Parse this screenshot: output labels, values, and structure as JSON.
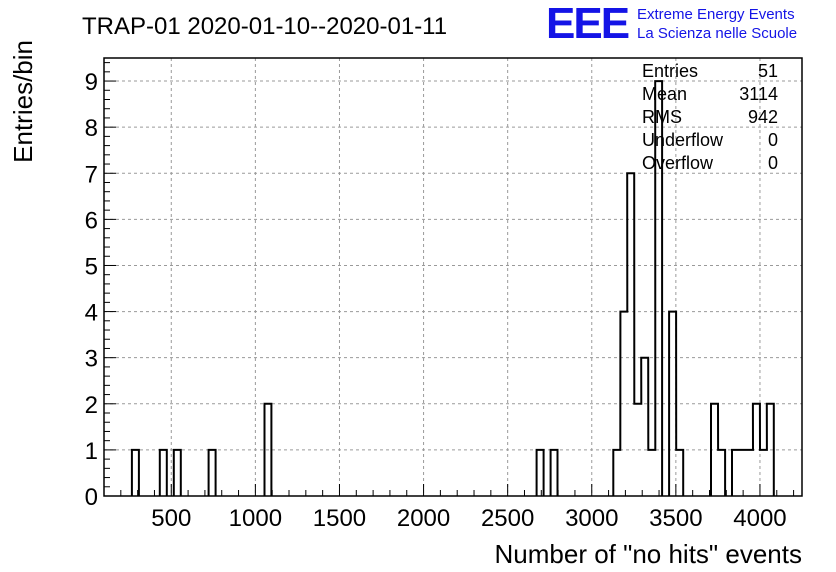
{
  "title": "TRAP-01 2020-01-10--2020-01-11",
  "logo": {
    "mark": "EEE",
    "line1": "Extreme Energy Events",
    "line2": "La Scienza nelle Scuole",
    "color": "#1414e6"
  },
  "stats": [
    {
      "label": "Entries",
      "value": "51"
    },
    {
      "label": "Mean",
      "value": "3114"
    },
    {
      "label": "RMS",
      "value": "942"
    },
    {
      "label": "Underflow",
      "value": "0"
    },
    {
      "label": "Overflow",
      "value": "0"
    }
  ],
  "chart_data": {
    "type": "bar",
    "subtype": "step-histogram",
    "title": "TRAP-01 2020-01-10--2020-01-11",
    "xlabel": "Number of \"no hits\" events",
    "ylabel": "Entries/bin",
    "xlim": [
      100,
      4250
    ],
    "ylim": [
      0,
      9.5
    ],
    "grid": true,
    "line_color": "#000000",
    "x_ticks": [
      500,
      1000,
      1500,
      2000,
      2500,
      3000,
      3500,
      4000
    ],
    "y_ticks": [
      0,
      1,
      2,
      3,
      4,
      5,
      6,
      7,
      8,
      9
    ],
    "bin_width": 41.5,
    "bins": [
      {
        "x0": 266,
        "count": 1
      },
      {
        "x0": 432,
        "count": 1
      },
      {
        "x0": 515,
        "count": 1
      },
      {
        "x0": 722,
        "count": 1
      },
      {
        "x0": 1054,
        "count": 2
      },
      {
        "x0": 2672,
        "count": 1
      },
      {
        "x0": 2755,
        "count": 1
      },
      {
        "x0": 3128,
        "count": 1
      },
      {
        "x0": 3170,
        "count": 4
      },
      {
        "x0": 3211,
        "count": 7
      },
      {
        "x0": 3253,
        "count": 2
      },
      {
        "x0": 3294,
        "count": 3
      },
      {
        "x0": 3336,
        "count": 1
      },
      {
        "x0": 3377,
        "count": 9
      },
      {
        "x0": 3460,
        "count": 4
      },
      {
        "x0": 3502,
        "count": 1
      },
      {
        "x0": 3709,
        "count": 2
      },
      {
        "x0": 3751,
        "count": 1
      },
      {
        "x0": 3834,
        "count": 1
      },
      {
        "x0": 3875,
        "count": 1
      },
      {
        "x0": 3917,
        "count": 1
      },
      {
        "x0": 3958,
        "count": 2
      },
      {
        "x0": 4000,
        "count": 1
      },
      {
        "x0": 4041,
        "count": 2
      }
    ]
  }
}
